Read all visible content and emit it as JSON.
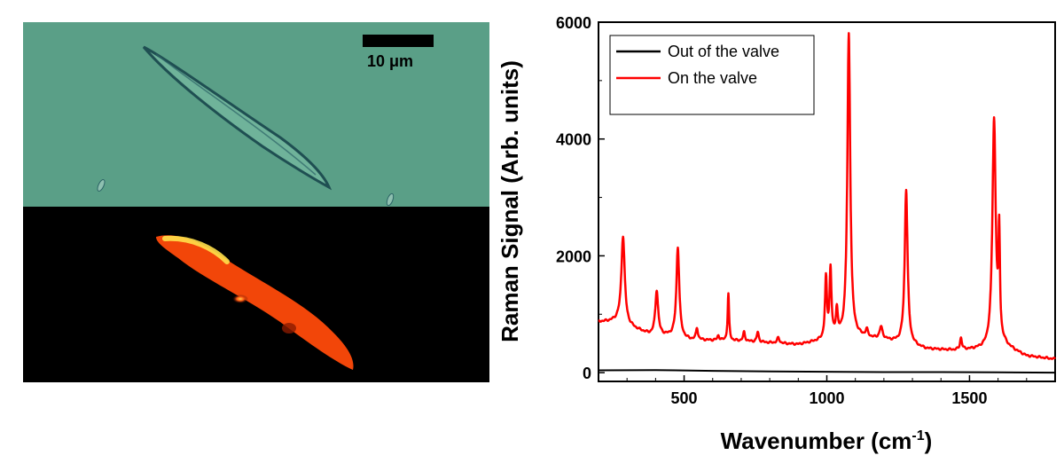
{
  "image_panel": {
    "scale_bar": {
      "label_number": "10 ",
      "label_unit": "μm"
    }
  },
  "chart_data": {
    "type": "line",
    "xlabel": "Wavenumber (cm",
    "xlabel_superscript": "-1",
    "xlabel_close": ")",
    "ylabel": "Raman Signal (Arb. units)",
    "xlim": [
      200,
      1800
    ],
    "ylim": [
      -150,
      6000
    ],
    "xticks": [
      500,
      1000,
      1500
    ],
    "yticks": [
      0,
      2000,
      4000,
      6000
    ],
    "legend_position": "top-left",
    "series": [
      {
        "name": "Out of the valve",
        "color": "#000000",
        "x": [
          200,
          400,
          600,
          800,
          1000,
          1200,
          1400,
          1600,
          1800
        ],
        "y": [
          40,
          45,
          30,
          20,
          15,
          10,
          10,
          5,
          0
        ]
      },
      {
        "name": "On the valve",
        "color": "#ff0000",
        "baseline": [
          [
            200,
            870
          ],
          [
            270,
            880
          ],
          [
            300,
            800
          ],
          [
            380,
            650
          ],
          [
            460,
            620
          ],
          [
            520,
            560
          ],
          [
            700,
            540
          ],
          [
            900,
            480
          ],
          [
            980,
            540
          ],
          [
            1050,
            580
          ],
          [
            1100,
            600
          ],
          [
            1200,
            560
          ],
          [
            1280,
            480
          ],
          [
            1350,
            400
          ],
          [
            1450,
            380
          ],
          [
            1560,
            400
          ],
          [
            1620,
            450
          ],
          [
            1700,
            280
          ],
          [
            1800,
            230
          ]
        ],
        "peaks": [
          {
            "x": 286,
            "height": 1500,
            "width": 7
          },
          {
            "x": 404,
            "height": 760,
            "width": 6
          },
          {
            "x": 478,
            "height": 1540,
            "width": 6
          },
          {
            "x": 545,
            "height": 200,
            "width": 4
          },
          {
            "x": 620,
            "height": 80,
            "width": 4
          },
          {
            "x": 655,
            "height": 800,
            "width": 3
          },
          {
            "x": 710,
            "height": 150,
            "width": 4
          },
          {
            "x": 758,
            "height": 170,
            "width": 4
          },
          {
            "x": 830,
            "height": 90,
            "width": 5
          },
          {
            "x": 997,
            "height": 1030,
            "width": 4
          },
          {
            "x": 1013,
            "height": 1170,
            "width": 4
          },
          {
            "x": 1035,
            "height": 450,
            "width": 4
          },
          {
            "x": 1077,
            "height": 5200,
            "width": 6
          },
          {
            "x": 1140,
            "height": 120,
            "width": 5
          },
          {
            "x": 1190,
            "height": 200,
            "width": 6
          },
          {
            "x": 1278,
            "height": 2650,
            "width": 6
          },
          {
            "x": 1470,
            "height": 200,
            "width": 4
          },
          {
            "x": 1586,
            "height": 3900,
            "width": 7
          },
          {
            "x": 1604,
            "height": 1750,
            "width": 3
          }
        ]
      }
    ]
  }
}
